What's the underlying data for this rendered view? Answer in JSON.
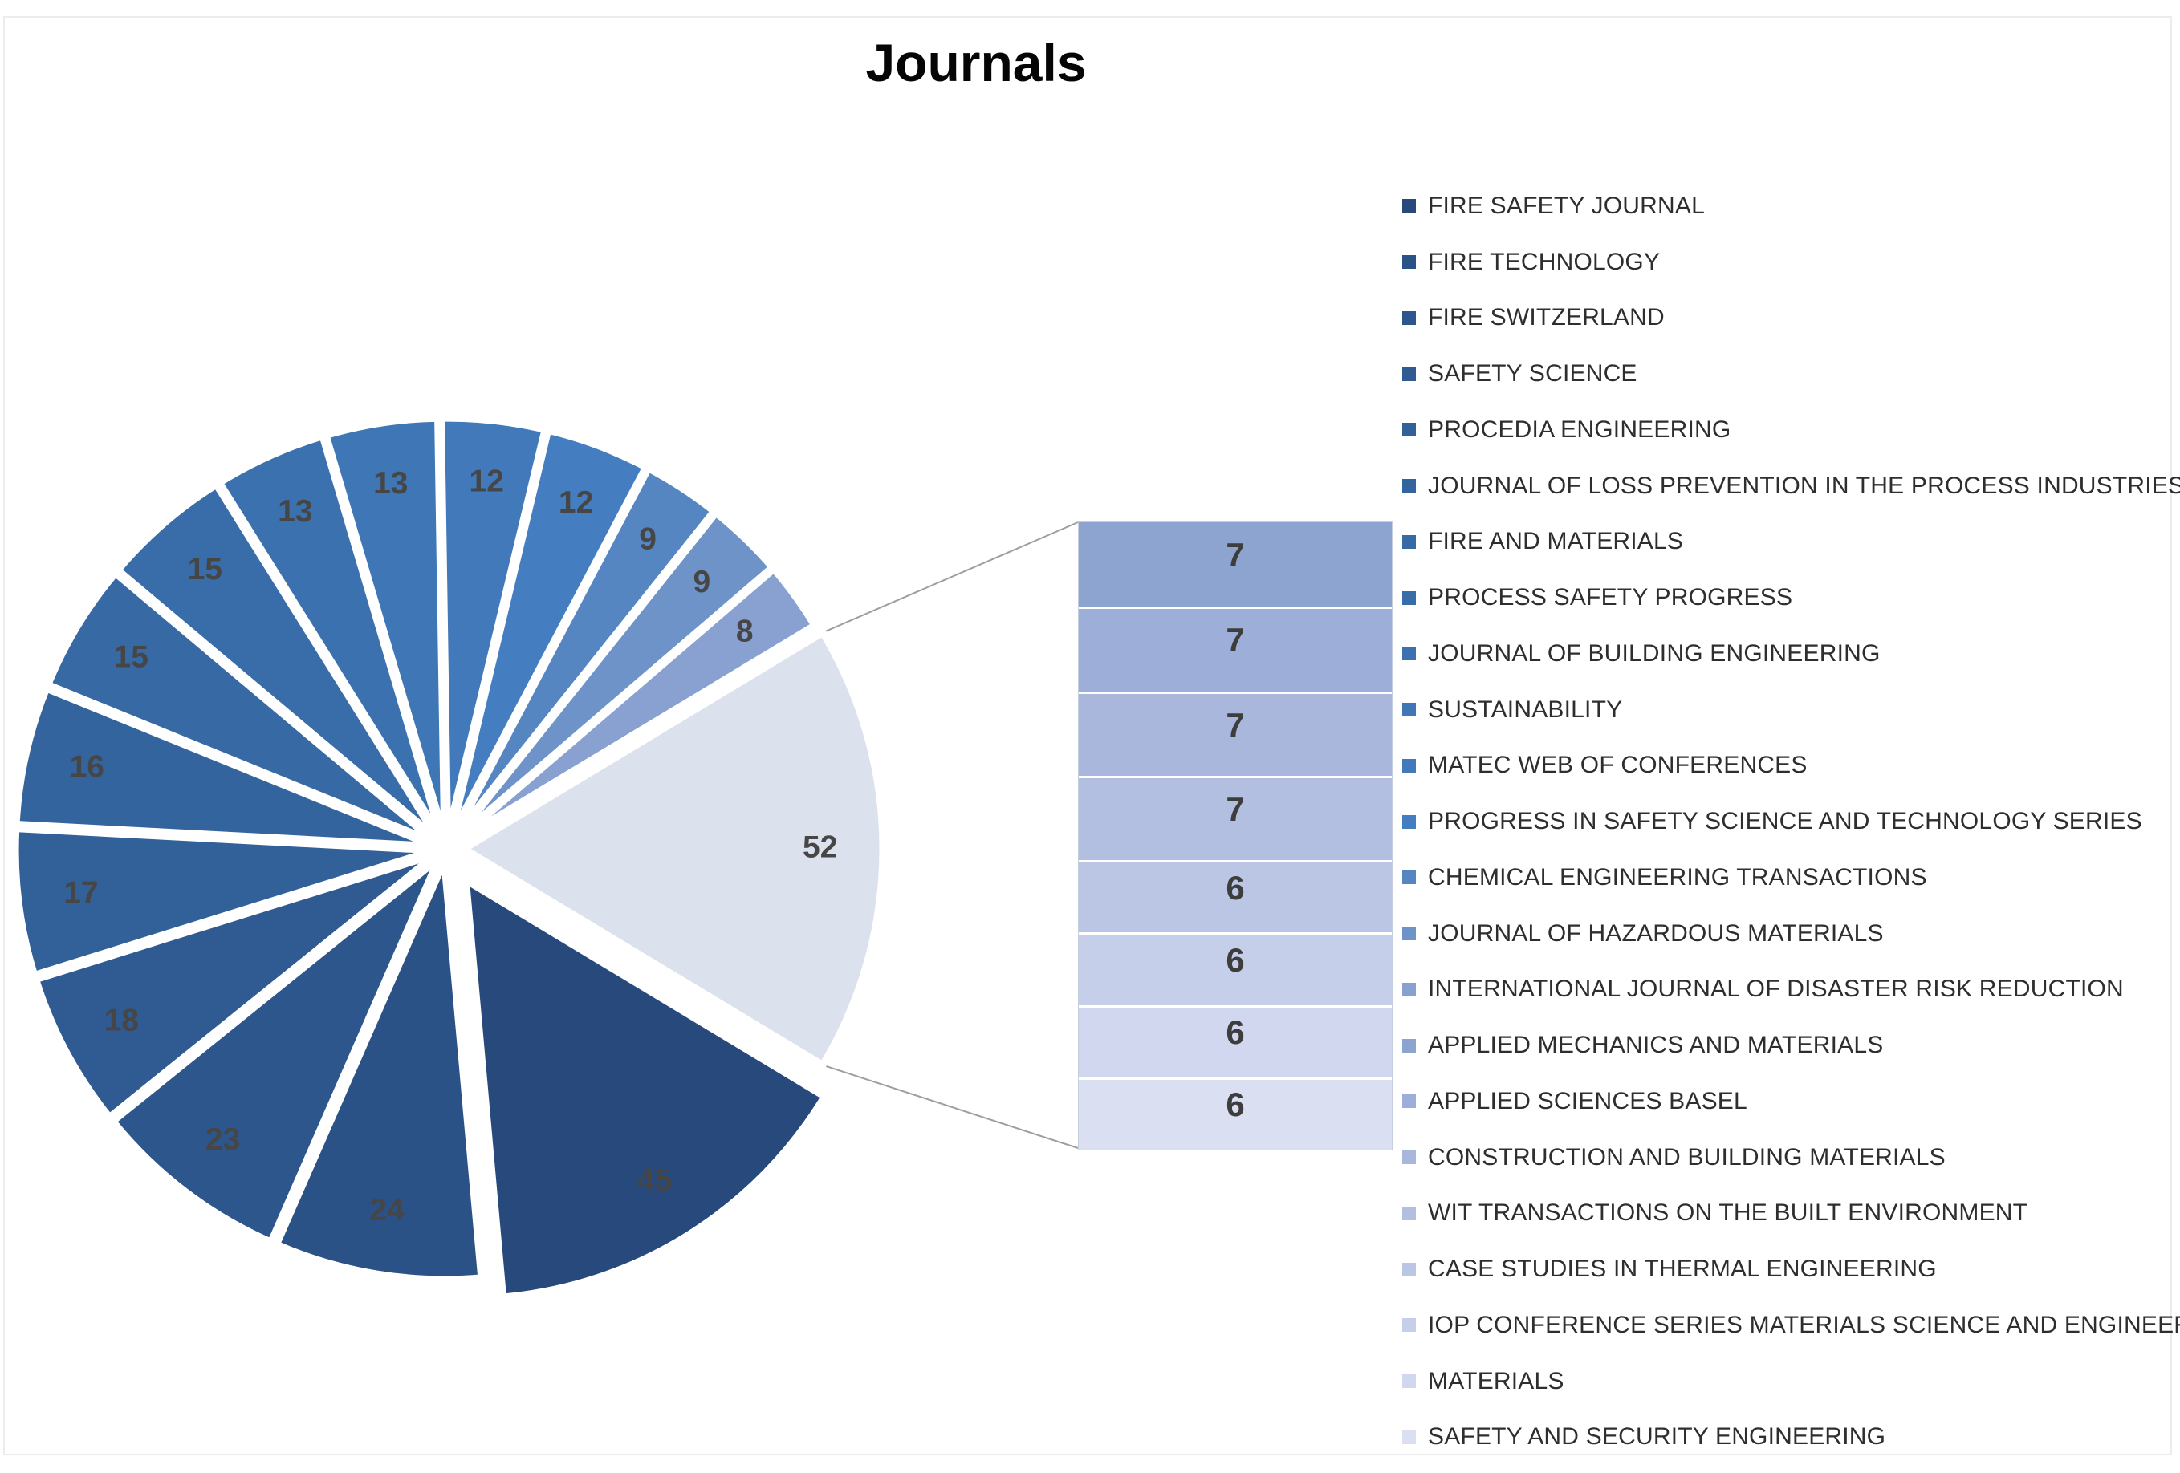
{
  "chart_data": {
    "type": "pie",
    "variant": "bar-of-pie",
    "title": "Journals",
    "legend_position": "right",
    "data_labels": true,
    "grid": false,
    "categories": [
      "FIRE SAFETY JOURNAL",
      "FIRE TECHNOLOGY",
      "FIRE SWITZERLAND",
      "SAFETY SCIENCE",
      "PROCEDIA ENGINEERING",
      "JOURNAL OF LOSS PREVENTION IN THE PROCESS INDUSTRIES",
      "FIRE AND MATERIALS",
      "PROCESS SAFETY PROGRESS",
      "JOURNAL OF BUILDING ENGINEERING",
      "SUSTAINABILITY",
      "MATEC WEB OF CONFERENCES",
      "PROGRESS IN SAFETY SCIENCE AND TECHNOLOGY SERIES",
      "CHEMICAL ENGINEERING TRANSACTIONS",
      "JOURNAL OF HAZARDOUS MATERIALS",
      "INTERNATIONAL JOURNAL OF DISASTER RISK REDUCTION",
      "APPLIED MECHANICS AND MATERIALS",
      "APPLIED SCIENCES BASEL",
      "CONSTRUCTION AND BUILDING MATERIALS",
      "WIT TRANSACTIONS ON THE BUILT ENVIRONMENT",
      "CASE STUDIES IN THERMAL ENGINEERING",
      "IOP CONFERENCE SERIES MATERIALS SCIENCE AND ENGINEERING",
      "MATERIALS",
      "SAFETY AND SECURITY ENGINEERING"
    ],
    "values": [
      45,
      24,
      23,
      18,
      17,
      16,
      15,
      15,
      13,
      13,
      12,
      12,
      9,
      9,
      8,
      7,
      7,
      7,
      7,
      6,
      6,
      6,
      6
    ],
    "colors": [
      "#27497B",
      "#2B5286",
      "#2D568C",
      "#2F5B92",
      "#326098",
      "#34649E",
      "#3769A4",
      "#396DAA",
      "#3C71B0",
      "#3F76B5",
      "#4279BA",
      "#457EC0",
      "#5586C1",
      "#6E93C8",
      "#88A1D0",
      "#8DA3D0",
      "#9DAFD8",
      "#A9B7DC",
      "#B2BFE0",
      "#BAC6E4",
      "#C5CFE9",
      "#D0D7EE",
      "#DAE0F2"
    ],
    "pie_slice_count": 15,
    "other_slice": {
      "value": 52,
      "color": "#DCE1EE"
    },
    "pie_label_color": "#464646",
    "leader_line_color": "#9e9e9e"
  }
}
